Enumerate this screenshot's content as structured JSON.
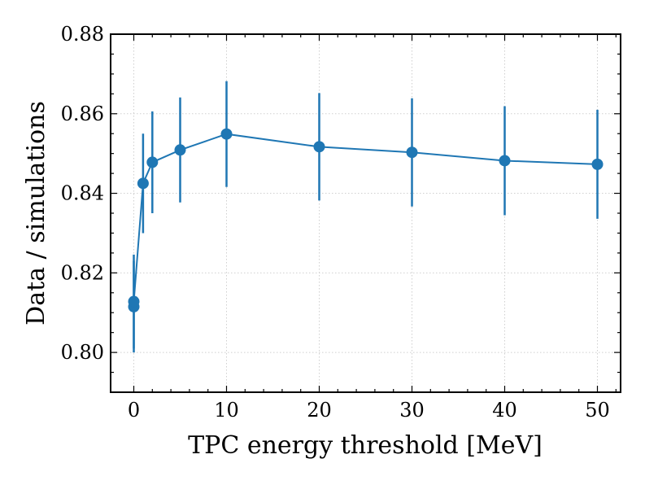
{
  "chart_data": {
    "type": "line",
    "title": "",
    "xlabel": "TPC energy threshold [MeV]",
    "ylabel": "Data / simulations",
    "xlim": [
      -2.5,
      52.5
    ],
    "ylim": [
      0.79,
      0.88
    ],
    "x_ticks": [
      0,
      10,
      20,
      30,
      40,
      50
    ],
    "x_tick_labels": [
      "0",
      "10",
      "20",
      "30",
      "40",
      "50"
    ],
    "y_ticks": [
      0.8,
      0.82,
      0.84,
      0.86,
      0.88
    ],
    "y_tick_labels": [
      "0.80",
      "0.82",
      "0.84",
      "0.86",
      "0.88"
    ],
    "grid": true,
    "series": [
      {
        "name": "Data / simulations",
        "color": "#1f77b4",
        "x": [
          0,
          0,
          1,
          2,
          5,
          10,
          20,
          30,
          40,
          50
        ],
        "y": [
          0.8115,
          0.8128,
          0.8425,
          0.8478,
          0.8509,
          0.8549,
          0.8517,
          0.8503,
          0.8482,
          0.8473
        ],
        "yerr": [
          0.0115,
          0.0118,
          0.0125,
          0.0128,
          0.0132,
          0.0133,
          0.0135,
          0.0136,
          0.0137,
          0.0137
        ]
      }
    ]
  }
}
